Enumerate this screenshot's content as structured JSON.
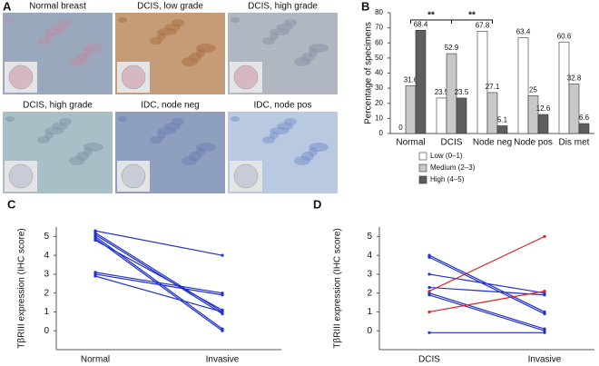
{
  "image_panel": {
    "panel_label": "A",
    "tiles": [
      {
        "label": "Normal breast"
      },
      {
        "label": "DCIS, low grade"
      },
      {
        "label": "DCIS, high grade"
      },
      {
        "label": "DCIS, high grade"
      },
      {
        "label": "IDC, node neg"
      },
      {
        "label": "IDC, node pos"
      }
    ]
  },
  "chart_data": [
    {
      "type": "bar",
      "panel_label": "B",
      "y_label": "Percentage of specimens",
      "categories": [
        "Normal",
        "DCIS",
        "Node neg",
        "Node pos",
        "Dis met"
      ],
      "series": [
        {
          "name": "Low (0–1)",
          "color": "#ffffff",
          "values": [
            0,
            23.5,
            67.8,
            63.4,
            60.6
          ]
        },
        {
          "name": "Medium (2–3)",
          "color": "#c8c8c8",
          "values": [
            31.6,
            52.9,
            27.1,
            25,
            32.8
          ]
        },
        {
          "name": "High (4–5)",
          "color": "#5e5e5e",
          "values": [
            68.4,
            23.5,
            5.1,
            12.6,
            6.6
          ]
        }
      ],
      "ylim": [
        0,
        80
      ],
      "yticks": [
        0,
        10,
        20,
        30,
        40,
        50,
        60,
        70,
        80
      ],
      "annotations": [
        "**",
        "**"
      ],
      "legend": "below",
      "grid": false
    },
    {
      "type": "line",
      "panel_label": "C",
      "y_label": "TβRIII expression (IHC score)",
      "categories": [
        "Normal",
        "Invasive"
      ],
      "series": [
        {
          "color": "#1f2fd0",
          "values": [
            5.3,
            4.0
          ]
        },
        {
          "color": "#1f2fd0",
          "values": [
            5.2,
            1.0
          ]
        },
        {
          "color": "#1f2fd0",
          "values": [
            5.1,
            0.9
          ]
        },
        {
          "color": "#1f2fd0",
          "values": [
            5.0,
            0.1
          ]
        },
        {
          "color": "#1f2fd0",
          "values": [
            4.9,
            0.0
          ]
        },
        {
          "color": "#1f2fd0",
          "values": [
            4.8,
            1.1
          ]
        },
        {
          "color": "#1f2fd0",
          "values": [
            3.1,
            2.0
          ]
        },
        {
          "color": "#1f2fd0",
          "values": [
            3.0,
            1.9
          ]
        },
        {
          "color": "#1f2fd0",
          "values": [
            2.9,
            1.0
          ]
        }
      ],
      "ylim": [
        -1,
        5.5
      ],
      "yticks": [
        0,
        1,
        2,
        3,
        4,
        5
      ],
      "grid": false
    },
    {
      "type": "line",
      "panel_label": "D",
      "y_label": "TβRIII expression (IHC score)",
      "categories": [
        "DCIS",
        "Invasive"
      ],
      "series": [
        {
          "color": "#1f2fd0",
          "values": [
            4.0,
            1.0
          ]
        },
        {
          "color": "#1f2fd0",
          "values": [
            3.9,
            0.9
          ]
        },
        {
          "color": "#1f2fd0",
          "values": [
            3.0,
            2.0
          ]
        },
        {
          "color": "#1f2fd0",
          "values": [
            2.3,
            1.9
          ]
        },
        {
          "color": "#1f2fd0",
          "values": [
            2.0,
            0.1
          ]
        },
        {
          "color": "#1f2fd0",
          "values": [
            1.9,
            0.0
          ]
        },
        {
          "color": "#1f2fd0",
          "values": [
            -0.1,
            -0.1
          ]
        },
        {
          "color": "#e02020",
          "values": [
            2.1,
            5.0
          ]
        },
        {
          "color": "#e02020",
          "values": [
            1.0,
            2.1
          ]
        }
      ],
      "ylim": [
        -1,
        5.5
      ],
      "yticks": [
        0,
        1,
        2,
        3,
        4,
        5
      ],
      "grid": false
    }
  ]
}
